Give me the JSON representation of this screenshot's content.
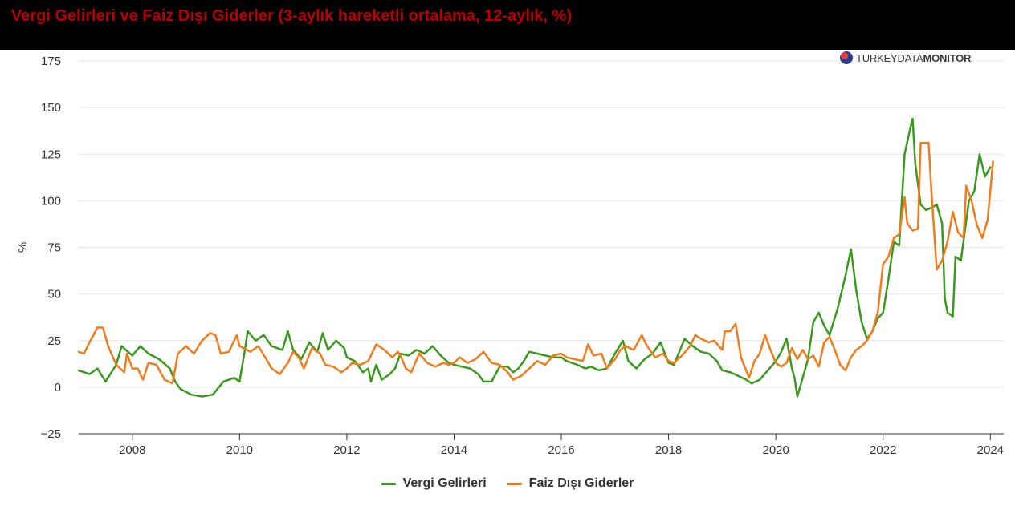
{
  "title": "Vergi Gelirleri ve Faiz Dışı Giderler (3-aylık hareketli ortalama, 12-aylık, %)",
  "logo": {
    "icon": "globe-icon",
    "text_light": "TURKEYDATA",
    "text_bold": "MONITOR"
  },
  "colors": {
    "title": "#b80000",
    "vergi": "#3a9a1e",
    "faiz": "#f07c1c",
    "grid": "#e6e6e6",
    "axis_text": "#333333"
  },
  "chart_data": {
    "type": "line",
    "title": "Vergi Gelirleri ve Faiz Dışı Giderler (3-aylık hareketli ortalama, 12-aylık, %)",
    "ylabel": "%",
    "xlabel": "",
    "ylim": [
      -25,
      175
    ],
    "yticks": [
      -25,
      0,
      25,
      50,
      75,
      100,
      125,
      150,
      175
    ],
    "xlim": [
      2007.0,
      2024.25
    ],
    "xticks": [
      2008,
      2010,
      2012,
      2014,
      2016,
      2018,
      2020,
      2022,
      2024
    ],
    "grid": true,
    "legend_position": "bottom-center",
    "series": [
      {
        "name": "Vergi Gelirleri",
        "color": "#3a9a1e",
        "points": [
          [
            2007.0,
            9
          ],
          [
            2007.2,
            7
          ],
          [
            2007.35,
            10
          ],
          [
            2007.5,
            3
          ],
          [
            2007.7,
            12
          ],
          [
            2007.8,
            22
          ],
          [
            2008.0,
            17
          ],
          [
            2008.15,
            22
          ],
          [
            2008.3,
            18
          ],
          [
            2008.5,
            15
          ],
          [
            2008.7,
            10
          ],
          [
            2008.8,
            3
          ],
          [
            2008.9,
            -1
          ],
          [
            2009.1,
            -4
          ],
          [
            2009.3,
            -5
          ],
          [
            2009.5,
            -4
          ],
          [
            2009.7,
            3
          ],
          [
            2009.9,
            5
          ],
          [
            2010.0,
            3
          ],
          [
            2010.1,
            20
          ],
          [
            2010.15,
            30
          ],
          [
            2010.3,
            25
          ],
          [
            2010.45,
            28
          ],
          [
            2010.6,
            22
          ],
          [
            2010.8,
            20
          ],
          [
            2010.9,
            30
          ],
          [
            2011.0,
            20
          ],
          [
            2011.15,
            15
          ],
          [
            2011.3,
            24
          ],
          [
            2011.45,
            19
          ],
          [
            2011.55,
            29
          ],
          [
            2011.65,
            20
          ],
          [
            2011.8,
            25
          ],
          [
            2011.95,
            21
          ],
          [
            2012.0,
            16
          ],
          [
            2012.15,
            14
          ],
          [
            2012.3,
            8
          ],
          [
            2012.4,
            10
          ],
          [
            2012.45,
            3
          ],
          [
            2012.55,
            12
          ],
          [
            2012.65,
            4
          ],
          [
            2012.8,
            7
          ],
          [
            2012.9,
            10
          ],
          [
            2013.0,
            18
          ],
          [
            2013.15,
            17
          ],
          [
            2013.3,
            20
          ],
          [
            2013.45,
            18
          ],
          [
            2013.6,
            22
          ],
          [
            2013.75,
            17
          ],
          [
            2013.9,
            13
          ],
          [
            2014.0,
            12
          ],
          [
            2014.15,
            11
          ],
          [
            2014.3,
            10
          ],
          [
            2014.45,
            7
          ],
          [
            2014.55,
            3
          ],
          [
            2014.7,
            3
          ],
          [
            2014.85,
            11
          ],
          [
            2015.0,
            11
          ],
          [
            2015.1,
            8
          ],
          [
            2015.2,
            10
          ],
          [
            2015.3,
            14
          ],
          [
            2015.4,
            19
          ],
          [
            2015.55,
            18
          ],
          [
            2015.7,
            17
          ],
          [
            2015.85,
            16
          ],
          [
            2016.0,
            16
          ],
          [
            2016.1,
            14
          ],
          [
            2016.3,
            12
          ],
          [
            2016.45,
            10
          ],
          [
            2016.55,
            11
          ],
          [
            2016.7,
            9
          ],
          [
            2016.85,
            10
          ],
          [
            2017.0,
            18
          ],
          [
            2017.15,
            25
          ],
          [
            2017.25,
            14
          ],
          [
            2017.4,
            10
          ],
          [
            2017.55,
            15
          ],
          [
            2017.7,
            18
          ],
          [
            2017.85,
            24
          ],
          [
            2018.0,
            13
          ],
          [
            2018.1,
            12
          ],
          [
            2018.2,
            19
          ],
          [
            2018.3,
            26
          ],
          [
            2018.45,
            22
          ],
          [
            2018.6,
            19
          ],
          [
            2018.75,
            18
          ],
          [
            2018.9,
            14
          ],
          [
            2019.0,
            9
          ],
          [
            2019.15,
            8
          ],
          [
            2019.3,
            6
          ],
          [
            2019.45,
            4
          ],
          [
            2019.55,
            2
          ],
          [
            2019.7,
            4
          ],
          [
            2019.85,
            9
          ],
          [
            2020.0,
            14
          ],
          [
            2020.1,
            19
          ],
          [
            2020.2,
            26
          ],
          [
            2020.3,
            10
          ],
          [
            2020.35,
            5
          ],
          [
            2020.4,
            -5
          ],
          [
            2020.5,
            5
          ],
          [
            2020.6,
            15
          ],
          [
            2020.7,
            35
          ],
          [
            2020.8,
            40
          ],
          [
            2020.9,
            33
          ],
          [
            2021.0,
            28
          ],
          [
            2021.15,
            42
          ],
          [
            2021.3,
            60
          ],
          [
            2021.4,
            74
          ],
          [
            2021.5,
            52
          ],
          [
            2021.6,
            35
          ],
          [
            2021.7,
            26
          ],
          [
            2021.8,
            30
          ],
          [
            2021.9,
            37
          ],
          [
            2022.0,
            40
          ],
          [
            2022.1,
            58
          ],
          [
            2022.2,
            78
          ],
          [
            2022.3,
            76
          ],
          [
            2022.35,
            100
          ],
          [
            2022.4,
            125
          ],
          [
            2022.5,
            138
          ],
          [
            2022.55,
            144
          ],
          [
            2022.6,
            120
          ],
          [
            2022.7,
            98
          ],
          [
            2022.8,
            95
          ],
          [
            2022.95,
            97
          ],
          [
            2023.0,
            98
          ],
          [
            2023.1,
            88
          ],
          [
            2023.15,
            48
          ],
          [
            2023.2,
            40
          ],
          [
            2023.3,
            38
          ],
          [
            2023.35,
            70
          ],
          [
            2023.45,
            68
          ],
          [
            2023.6,
            100
          ],
          [
            2023.7,
            105
          ],
          [
            2023.8,
            125
          ],
          [
            2023.9,
            113
          ],
          [
            2024.0,
            118
          ]
        ]
      },
      {
        "name": "Faiz Dışı Giderler",
        "color": "#f07c1c",
        "points": [
          [
            2007.0,
            19
          ],
          [
            2007.1,
            18
          ],
          [
            2007.2,
            24
          ],
          [
            2007.35,
            32
          ],
          [
            2007.45,
            32
          ],
          [
            2007.55,
            22
          ],
          [
            2007.7,
            12
          ],
          [
            2007.85,
            8
          ],
          [
            2007.9,
            18
          ],
          [
            2008.0,
            10
          ],
          [
            2008.1,
            10
          ],
          [
            2008.2,
            4
          ],
          [
            2008.3,
            13
          ],
          [
            2008.45,
            12
          ],
          [
            2008.6,
            4
          ],
          [
            2008.75,
            2
          ],
          [
            2008.85,
            18
          ],
          [
            2009.0,
            22
          ],
          [
            2009.15,
            18
          ],
          [
            2009.3,
            25
          ],
          [
            2009.45,
            29
          ],
          [
            2009.55,
            28
          ],
          [
            2009.65,
            18
          ],
          [
            2009.8,
            19
          ],
          [
            2009.95,
            28
          ],
          [
            2010.0,
            22
          ],
          [
            2010.2,
            19
          ],
          [
            2010.35,
            22
          ],
          [
            2010.5,
            15
          ],
          [
            2010.6,
            10
          ],
          [
            2010.75,
            7
          ],
          [
            2010.9,
            13
          ],
          [
            2011.0,
            19
          ],
          [
            2011.1,
            16
          ],
          [
            2011.2,
            10
          ],
          [
            2011.35,
            21
          ],
          [
            2011.5,
            18
          ],
          [
            2011.6,
            12
          ],
          [
            2011.75,
            11
          ],
          [
            2011.9,
            8
          ],
          [
            2012.0,
            10
          ],
          [
            2012.1,
            13
          ],
          [
            2012.25,
            12
          ],
          [
            2012.4,
            14
          ],
          [
            2012.55,
            23
          ],
          [
            2012.7,
            20
          ],
          [
            2012.85,
            16
          ],
          [
            2012.95,
            19
          ],
          [
            2013.0,
            17
          ],
          [
            2013.1,
            10
          ],
          [
            2013.2,
            8
          ],
          [
            2013.35,
            18
          ],
          [
            2013.5,
            13
          ],
          [
            2013.65,
            11
          ],
          [
            2013.8,
            13
          ],
          [
            2013.9,
            12
          ],
          [
            2014.0,
            13
          ],
          [
            2014.1,
            16
          ],
          [
            2014.25,
            13
          ],
          [
            2014.4,
            15
          ],
          [
            2014.55,
            19
          ],
          [
            2014.7,
            13
          ],
          [
            2014.85,
            12
          ],
          [
            2015.0,
            8
          ],
          [
            2015.1,
            4
          ],
          [
            2015.25,
            6
          ],
          [
            2015.4,
            10
          ],
          [
            2015.55,
            14
          ],
          [
            2015.7,
            12
          ],
          [
            2015.85,
            17
          ],
          [
            2016.0,
            18
          ],
          [
            2016.1,
            16
          ],
          [
            2016.25,
            15
          ],
          [
            2016.4,
            14
          ],
          [
            2016.5,
            23
          ],
          [
            2016.6,
            17
          ],
          [
            2016.75,
            18
          ],
          [
            2016.85,
            10
          ],
          [
            2017.0,
            15
          ],
          [
            2017.1,
            20
          ],
          [
            2017.2,
            22
          ],
          [
            2017.35,
            20
          ],
          [
            2017.5,
            28
          ],
          [
            2017.6,
            22
          ],
          [
            2017.75,
            16
          ],
          [
            2017.9,
            18
          ],
          [
            2018.0,
            14
          ],
          [
            2018.1,
            13
          ],
          [
            2018.25,
            17
          ],
          [
            2018.4,
            22
          ],
          [
            2018.5,
            28
          ],
          [
            2018.6,
            26
          ],
          [
            2018.75,
            24
          ],
          [
            2018.85,
            25
          ],
          [
            2019.0,
            20
          ],
          [
            2019.05,
            30
          ],
          [
            2019.15,
            30
          ],
          [
            2019.25,
            34
          ],
          [
            2019.35,
            16
          ],
          [
            2019.5,
            5
          ],
          [
            2019.6,
            14
          ],
          [
            2019.7,
            18
          ],
          [
            2019.8,
            28
          ],
          [
            2019.9,
            20
          ],
          [
            2020.0,
            13
          ],
          [
            2020.1,
            11
          ],
          [
            2020.2,
            13
          ],
          [
            2020.3,
            21
          ],
          [
            2020.4,
            15
          ],
          [
            2020.5,
            20
          ],
          [
            2020.6,
            15
          ],
          [
            2020.7,
            17
          ],
          [
            2020.8,
            11
          ],
          [
            2020.9,
            24
          ],
          [
            2021.0,
            27
          ],
          [
            2021.1,
            20
          ],
          [
            2021.2,
            12
          ],
          [
            2021.3,
            9
          ],
          [
            2021.4,
            16
          ],
          [
            2021.5,
            20
          ],
          [
            2021.6,
            22
          ],
          [
            2021.7,
            25
          ],
          [
            2021.8,
            30
          ],
          [
            2021.9,
            40
          ],
          [
            2022.0,
            66
          ],
          [
            2022.1,
            70
          ],
          [
            2022.2,
            80
          ],
          [
            2022.3,
            82
          ],
          [
            2022.4,
            102
          ],
          [
            2022.45,
            88
          ],
          [
            2022.55,
            84
          ],
          [
            2022.65,
            85
          ],
          [
            2022.7,
            131
          ],
          [
            2022.8,
            131
          ],
          [
            2022.85,
            131
          ],
          [
            2022.9,
            106
          ],
          [
            2023.0,
            63
          ],
          [
            2023.1,
            68
          ],
          [
            2023.2,
            78
          ],
          [
            2023.3,
            94
          ],
          [
            2023.4,
            83
          ],
          [
            2023.5,
            80
          ],
          [
            2023.55,
            108
          ],
          [
            2023.65,
            100
          ],
          [
            2023.75,
            87
          ],
          [
            2023.85,
            80
          ],
          [
            2023.95,
            90
          ],
          [
            2024.05,
            121
          ]
        ]
      }
    ]
  }
}
